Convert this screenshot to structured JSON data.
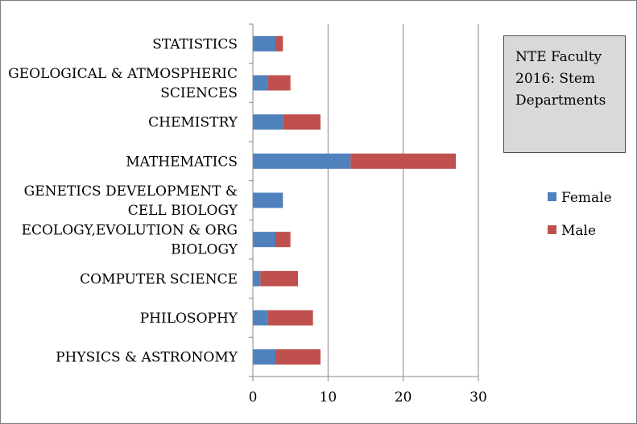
{
  "chart_data": {
    "type": "bar",
    "orientation": "horizontal",
    "stacked": true,
    "title": "NTE Faculty\n2016: Stem\nDepartments",
    "categories": [
      "STATISTICS",
      "GEOLOGICAL & ATMOSPHERIC SCIENCES",
      "CHEMISTRY",
      "MATHEMATICS",
      "GENETICS DEVELOPMENT & CELL BIOLOGY",
      "ECOLOGY,EVOLUTION & ORG BIOLOGY",
      "COMPUTER SCIENCE",
      "PHILOSOPHY",
      "PHYSICS & ASTRONOMY"
    ],
    "category_lines": [
      [
        "STATISTICS"
      ],
      [
        "GEOLOGICAL & ATMOSPHERIC",
        "SCIENCES"
      ],
      [
        "CHEMISTRY"
      ],
      [
        "MATHEMATICS"
      ],
      [
        "GENETICS DEVELOPMENT &",
        "CELL BIOLOGY"
      ],
      [
        "ECOLOGY,EVOLUTION & ORG",
        "BIOLOGY"
      ],
      [
        "COMPUTER SCIENCE"
      ],
      [
        "PHILOSOPHY"
      ],
      [
        "PHYSICS & ASTRONOMY"
      ]
    ],
    "series": [
      {
        "name": "Female",
        "color": "#4f81bd",
        "values": [
          3,
          2,
          4,
          13,
          4,
          3,
          1,
          2,
          3
        ]
      },
      {
        "name": "Male",
        "color": "#c0504d",
        "values": [
          1,
          3,
          5,
          14,
          0,
          2,
          5,
          6,
          6
        ]
      }
    ],
    "xlim": [
      0,
      30
    ],
    "xticks": [
      0,
      10,
      20,
      30
    ],
    "xlabel": "",
    "ylabel": "",
    "grid": "vertical",
    "legend_position": "right"
  }
}
